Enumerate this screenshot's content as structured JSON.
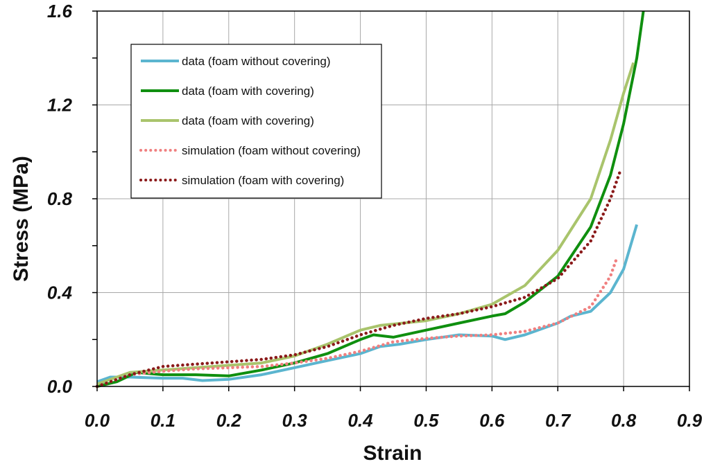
{
  "chart_data": {
    "type": "line",
    "title": "",
    "xlabel": "Strain",
    "ylabel": "Stress (MPa)",
    "xlim": [
      0.0,
      0.9
    ],
    "ylim": [
      0.0,
      1.6
    ],
    "xticks": [
      "0.0",
      "0.1",
      "0.2",
      "0.3",
      "0.4",
      "0.5",
      "0.6",
      "0.7",
      "0.8",
      "0.9"
    ],
    "yticks": [
      "0.0",
      "0.4",
      "0.8",
      "1.2",
      "1.6"
    ],
    "grid": true,
    "legend_position": "top-left",
    "series": [
      {
        "name": "data (foam without covering)",
        "color": "#5bb5cf",
        "style": "solid",
        "points": [
          [
            0.0,
            0.02
          ],
          [
            0.02,
            0.04
          ],
          [
            0.05,
            0.04
          ],
          [
            0.1,
            0.035
          ],
          [
            0.13,
            0.035
          ],
          [
            0.16,
            0.025
          ],
          [
            0.2,
            0.03
          ],
          [
            0.25,
            0.05
          ],
          [
            0.3,
            0.08
          ],
          [
            0.35,
            0.11
          ],
          [
            0.4,
            0.14
          ],
          [
            0.43,
            0.17
          ],
          [
            0.46,
            0.18
          ],
          [
            0.5,
            0.2
          ],
          [
            0.55,
            0.22
          ],
          [
            0.6,
            0.215
          ],
          [
            0.62,
            0.2
          ],
          [
            0.65,
            0.22
          ],
          [
            0.7,
            0.27
          ],
          [
            0.72,
            0.3
          ],
          [
            0.75,
            0.32
          ],
          [
            0.78,
            0.4
          ],
          [
            0.8,
            0.5
          ],
          [
            0.82,
            0.69
          ]
        ]
      },
      {
        "name": "data (foam with covering)",
        "color": "#0f8f0f",
        "style": "solid",
        "points": [
          [
            0.0,
            0.0
          ],
          [
            0.03,
            0.02
          ],
          [
            0.06,
            0.06
          ],
          [
            0.1,
            0.05
          ],
          [
            0.15,
            0.05
          ],
          [
            0.2,
            0.045
          ],
          [
            0.25,
            0.07
          ],
          [
            0.3,
            0.1
          ],
          [
            0.35,
            0.14
          ],
          [
            0.4,
            0.2
          ],
          [
            0.42,
            0.22
          ],
          [
            0.45,
            0.21
          ],
          [
            0.5,
            0.24
          ],
          [
            0.55,
            0.27
          ],
          [
            0.6,
            0.3
          ],
          [
            0.62,
            0.31
          ],
          [
            0.65,
            0.36
          ],
          [
            0.7,
            0.47
          ],
          [
            0.75,
            0.68
          ],
          [
            0.78,
            0.9
          ],
          [
            0.8,
            1.12
          ],
          [
            0.82,
            1.4
          ],
          [
            0.83,
            1.6
          ]
        ]
      },
      {
        "name": "data (foam with covering)",
        "color": "#a9c46c",
        "style": "solid",
        "points": [
          [
            0.0,
            0.01
          ],
          [
            0.05,
            0.06
          ],
          [
            0.1,
            0.07
          ],
          [
            0.15,
            0.08
          ],
          [
            0.2,
            0.09
          ],
          [
            0.25,
            0.1
          ],
          [
            0.3,
            0.13
          ],
          [
            0.35,
            0.18
          ],
          [
            0.4,
            0.24
          ],
          [
            0.43,
            0.26
          ],
          [
            0.5,
            0.28
          ],
          [
            0.55,
            0.31
          ],
          [
            0.6,
            0.35
          ],
          [
            0.65,
            0.43
          ],
          [
            0.7,
            0.58
          ],
          [
            0.75,
            0.8
          ],
          [
            0.78,
            1.05
          ],
          [
            0.8,
            1.25
          ],
          [
            0.815,
            1.38
          ]
        ]
      },
      {
        "name": "simulation (foam without covering)",
        "color": "#f08080",
        "style": "dotted",
        "points": [
          [
            0.0,
            0.0
          ],
          [
            0.05,
            0.05
          ],
          [
            0.1,
            0.065
          ],
          [
            0.15,
            0.075
          ],
          [
            0.2,
            0.08
          ],
          [
            0.25,
            0.085
          ],
          [
            0.3,
            0.1
          ],
          [
            0.35,
            0.12
          ],
          [
            0.4,
            0.15
          ],
          [
            0.45,
            0.19
          ],
          [
            0.5,
            0.205
          ],
          [
            0.55,
            0.215
          ],
          [
            0.6,
            0.22
          ],
          [
            0.65,
            0.235
          ],
          [
            0.7,
            0.27
          ],
          [
            0.75,
            0.34
          ],
          [
            0.78,
            0.47
          ],
          [
            0.79,
            0.55
          ]
        ]
      },
      {
        "name": "simulation (foam with covering)",
        "color": "#8b1a1a",
        "style": "dotted",
        "points": [
          [
            0.0,
            0.0
          ],
          [
            0.05,
            0.05
          ],
          [
            0.1,
            0.085
          ],
          [
            0.15,
            0.095
          ],
          [
            0.2,
            0.105
          ],
          [
            0.25,
            0.115
          ],
          [
            0.3,
            0.135
          ],
          [
            0.35,
            0.17
          ],
          [
            0.4,
            0.22
          ],
          [
            0.45,
            0.26
          ],
          [
            0.5,
            0.29
          ],
          [
            0.55,
            0.31
          ],
          [
            0.6,
            0.34
          ],
          [
            0.65,
            0.38
          ],
          [
            0.7,
            0.46
          ],
          [
            0.75,
            0.62
          ],
          [
            0.78,
            0.8
          ],
          [
            0.795,
            0.92
          ]
        ]
      }
    ]
  }
}
